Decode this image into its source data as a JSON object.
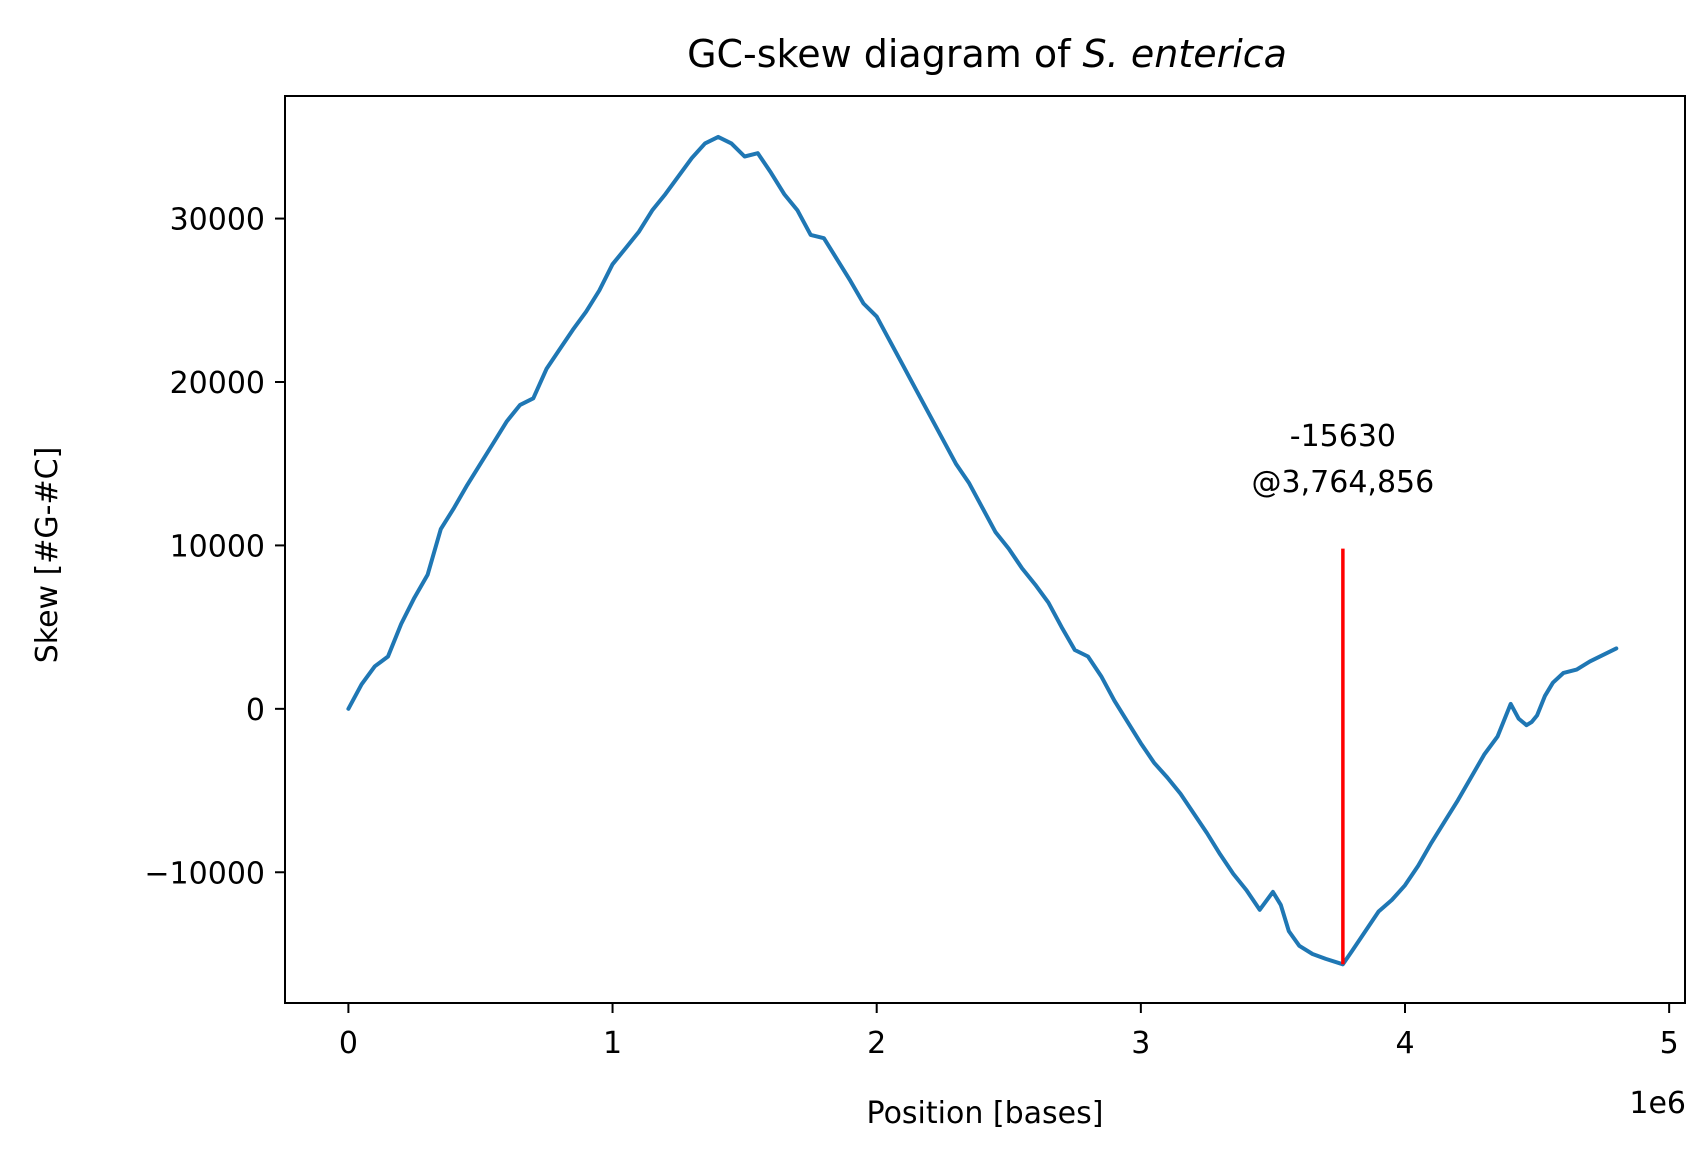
{
  "chart_data": {
    "type": "line",
    "title": "GC-skew diagram of ",
    "title_species": "S. enterica",
    "xlabel": "Position [bases]",
    "ylabel": "Skew [#G-#C]",
    "x_offset_label": "1e6",
    "xlim": [
      -240000,
      5060000
    ],
    "ylim": [
      -18000,
      37500
    ],
    "x_ticks": [
      0,
      1000000,
      2000000,
      3000000,
      4000000,
      5000000
    ],
    "x_tick_labels": [
      "0",
      "1",
      "2",
      "3",
      "4",
      "5"
    ],
    "y_ticks": [
      -10000,
      0,
      10000,
      20000,
      30000
    ],
    "y_tick_labels": [
      "−10000",
      "0",
      "10000",
      "20000",
      "30000"
    ],
    "grid": false,
    "series": [
      {
        "color": "#1f77b4",
        "x": [
          0,
          50000,
          100000,
          150000,
          200000,
          250000,
          300000,
          350000,
          400000,
          450000,
          500000,
          550000,
          600000,
          650000,
          700000,
          750000,
          800000,
          850000,
          900000,
          950000,
          1000000,
          1050000,
          1100000,
          1150000,
          1200000,
          1250000,
          1300000,
          1350000,
          1400000,
          1450000,
          1500000,
          1550000,
          1600000,
          1650000,
          1700000,
          1750000,
          1800000,
          1850000,
          1900000,
          1950000,
          2000000,
          2050000,
          2100000,
          2150000,
          2200000,
          2250000,
          2300000,
          2350000,
          2400000,
          2450000,
          2500000,
          2550000,
          2600000,
          2650000,
          2700000,
          2750000,
          2800000,
          2850000,
          2900000,
          2950000,
          3000000,
          3050000,
          3100000,
          3150000,
          3200000,
          3250000,
          3300000,
          3350000,
          3400000,
          3450000,
          3500000,
          3530000,
          3560000,
          3600000,
          3650000,
          3700000,
          3764856,
          3800000,
          3850000,
          3900000,
          3950000,
          4000000,
          4050000,
          4100000,
          4150000,
          4200000,
          4250000,
          4300000,
          4350000,
          4400000,
          4430000,
          4460000,
          4480000,
          4500000,
          4530000,
          4560000,
          4600000,
          4650000,
          4700000,
          4750000,
          4800000
        ],
        "y": [
          0,
          1500,
          2600,
          3200,
          5200,
          6800,
          8200,
          11000,
          12300,
          13700,
          15000,
          16300,
          17600,
          18600,
          19000,
          20800,
          22000,
          23200,
          24300,
          25600,
          27200,
          28200,
          29200,
          30500,
          31500,
          32600,
          33700,
          34600,
          35000,
          34600,
          33800,
          34000,
          32800,
          31500,
          30500,
          29000,
          28800,
          27500,
          26200,
          24800,
          24000,
          22500,
          21000,
          19500,
          18000,
          16500,
          15000,
          13800,
          12300,
          10800,
          9800,
          8600,
          7600,
          6500,
          5000,
          3600,
          3200,
          2000,
          500,
          -800,
          -2100,
          -3300,
          -4200,
          -5200,
          -6400,
          -7600,
          -8900,
          -10100,
          -11100,
          -12300,
          -11200,
          -12000,
          -13600,
          -14500,
          -15000,
          -15300,
          -15630,
          -14800,
          -13600,
          -12400,
          -11700,
          -10800,
          -9600,
          -8200,
          -6900,
          -5600,
          -4200,
          -2800,
          -1700,
          300,
          -600,
          -1000,
          -800,
          -400,
          800,
          1600,
          2200,
          2400,
          2900,
          3300,
          3700
        ]
      }
    ],
    "annotation": {
      "x": 3764856,
      "y": -15630,
      "line_top_y": 9800,
      "line_color": "#ff0000",
      "value_text": "-15630",
      "position_text": "@3,764,856"
    }
  }
}
